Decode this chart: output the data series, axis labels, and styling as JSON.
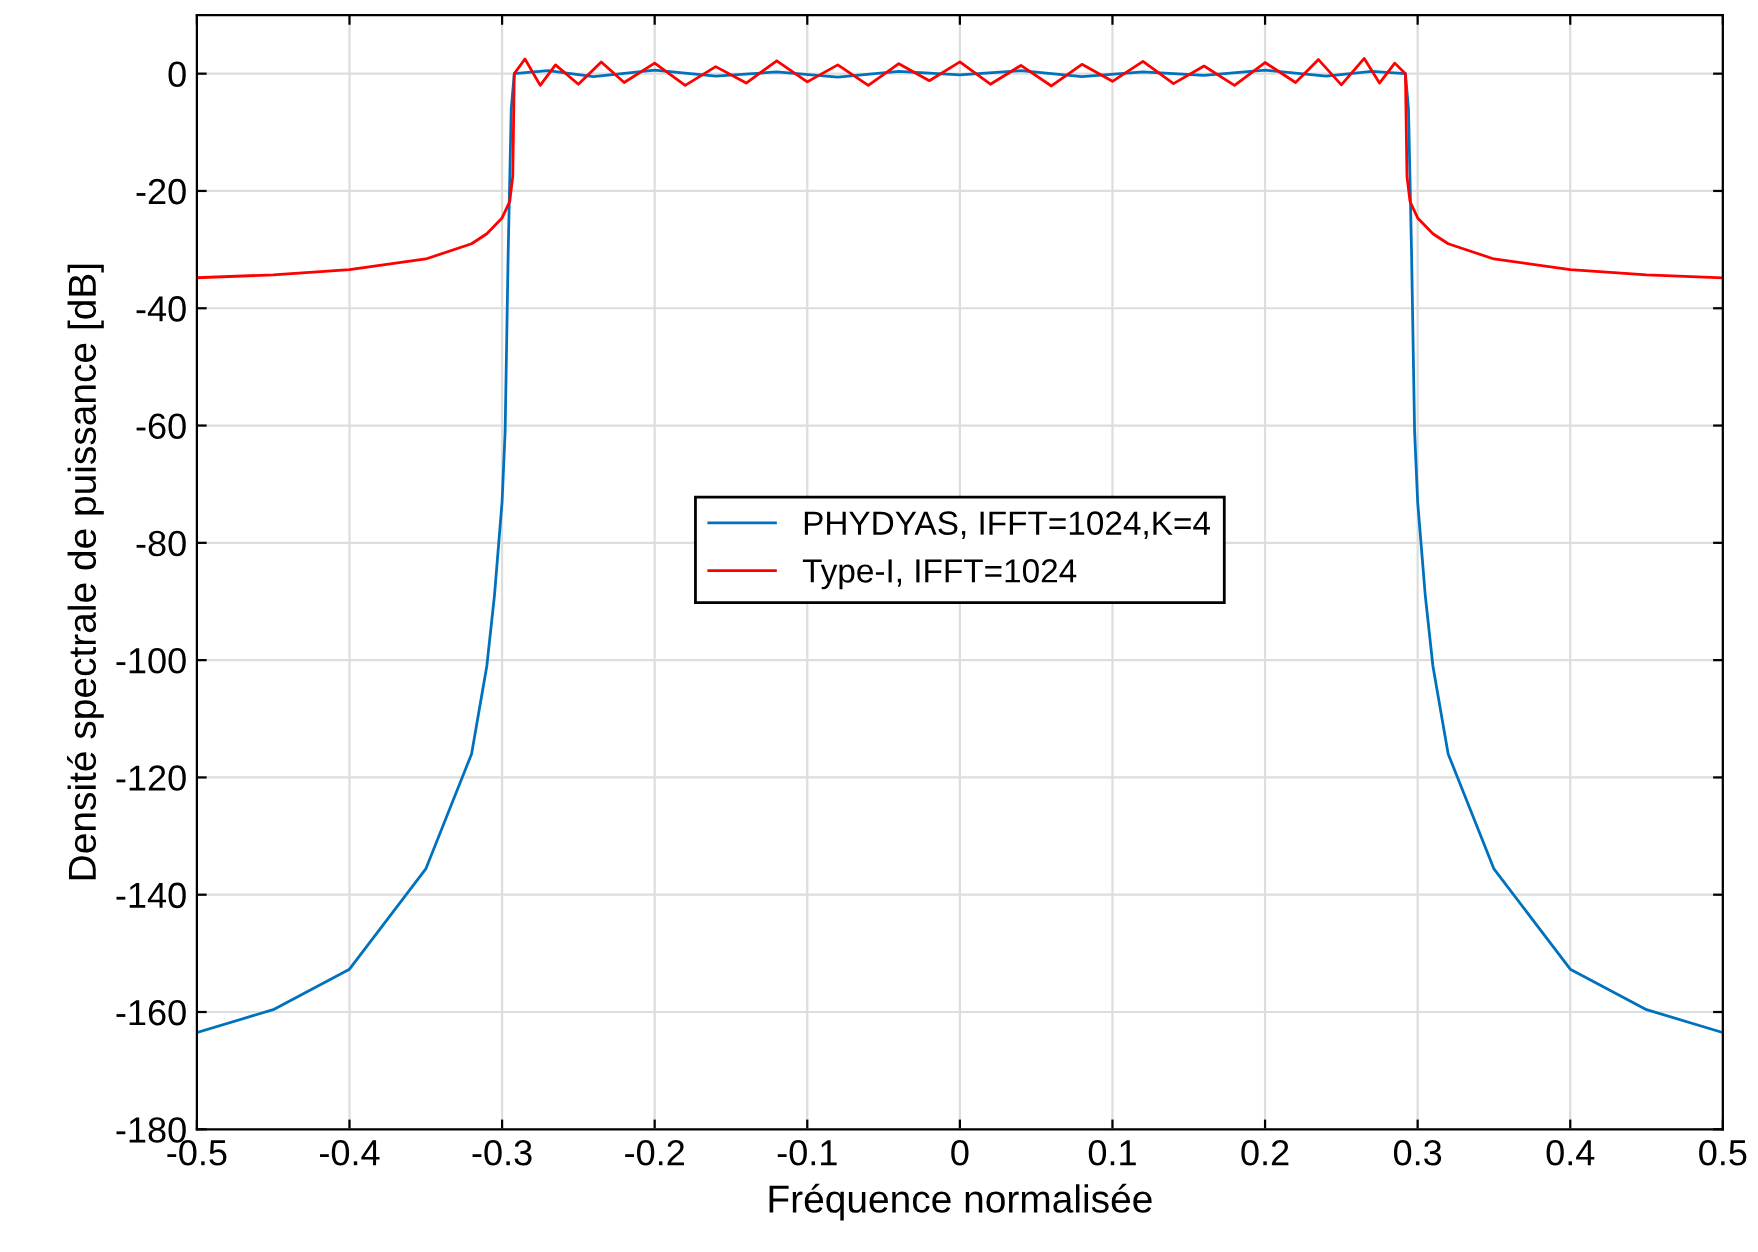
{
  "chart_data": {
    "type": "line",
    "xlabel": "Fréquence normalisée",
    "ylabel": "Densité spectrale de puissance [dB]",
    "xlim": [
      -0.5,
      0.5
    ],
    "ylim": [
      -180,
      10
    ],
    "xticks": [
      -0.5,
      -0.4,
      -0.3,
      -0.2,
      -0.1,
      0,
      0.1,
      0.2,
      0.3,
      0.4,
      0.5
    ],
    "yticks": [
      -180,
      -160,
      -140,
      -120,
      -100,
      -80,
      -60,
      -40,
      -20,
      0
    ],
    "grid": true,
    "legend": "center",
    "series": [
      {
        "name": "PHYDYAS, IFFT=1024,K=4",
        "color": "#0072bd",
        "x": [
          -0.5,
          -0.45,
          -0.4,
          -0.35,
          -0.32,
          -0.31,
          -0.305,
          -0.3,
          -0.298,
          -0.296,
          -0.294,
          -0.292,
          -0.27,
          -0.24,
          -0.2,
          -0.16,
          -0.12,
          -0.08,
          -0.04,
          0,
          0.04,
          0.08,
          0.12,
          0.16,
          0.2,
          0.24,
          0.27,
          0.292,
          0.294,
          0.296,
          0.298,
          0.3,
          0.305,
          0.31,
          0.32,
          0.35,
          0.4,
          0.45,
          0.5
        ],
        "values": [
          -163.5,
          -159.6,
          -152.7,
          -135.6,
          -116,
          -101,
          -89,
          -73,
          -61,
          -30.5,
          -6,
          0,
          0.5,
          -0.5,
          0.6,
          -0.4,
          0.3,
          -0.6,
          0.4,
          -0.2,
          0.5,
          -0.5,
          0.3,
          -0.3,
          0.6,
          -0.4,
          0.4,
          0,
          -6,
          -30.5,
          -61,
          -73,
          -89,
          -101,
          -116,
          -135.6,
          -152.7,
          -159.6,
          -163.5
        ]
      },
      {
        "name": "Type-I, IFFT=1024",
        "color": "#ff0000",
        "x": [
          -0.5,
          -0.45,
          -0.4,
          -0.35,
          -0.32,
          -0.31,
          -0.3,
          -0.295,
          -0.293,
          -0.292,
          -0.285,
          -0.275,
          -0.265,
          -0.25,
          -0.235,
          -0.22,
          -0.2,
          -0.18,
          -0.16,
          -0.14,
          -0.12,
          -0.1,
          -0.08,
          -0.06,
          -0.04,
          -0.02,
          0,
          0.02,
          0.04,
          0.06,
          0.08,
          0.1,
          0.12,
          0.14,
          0.16,
          0.18,
          0.2,
          0.22,
          0.235,
          0.25,
          0.265,
          0.275,
          0.285,
          0.292,
          0.293,
          0.295,
          0.3,
          0.31,
          0.32,
          0.35,
          0.4,
          0.45,
          0.5
        ],
        "values": [
          -34.8,
          -34.3,
          -33.4,
          -31.6,
          -29,
          -27.3,
          -24.6,
          -21.8,
          -17.5,
          0,
          2.5,
          -2,
          1.5,
          -1.8,
          2,
          -1.5,
          1.8,
          -2,
          1.2,
          -1.6,
          2.2,
          -1.4,
          1.5,
          -2,
          1.7,
          -1.2,
          2,
          -1.8,
          1.4,
          -2.1,
          1.6,
          -1.3,
          2.1,
          -1.7,
          1.3,
          -2,
          1.9,
          -1.5,
          2.4,
          -1.9,
          2.6,
          -1.6,
          1.8,
          0,
          -17.5,
          -21.8,
          -24.6,
          -27.3,
          -29,
          -31.6,
          -33.4,
          -34.3,
          -34.8
        ]
      }
    ]
  }
}
